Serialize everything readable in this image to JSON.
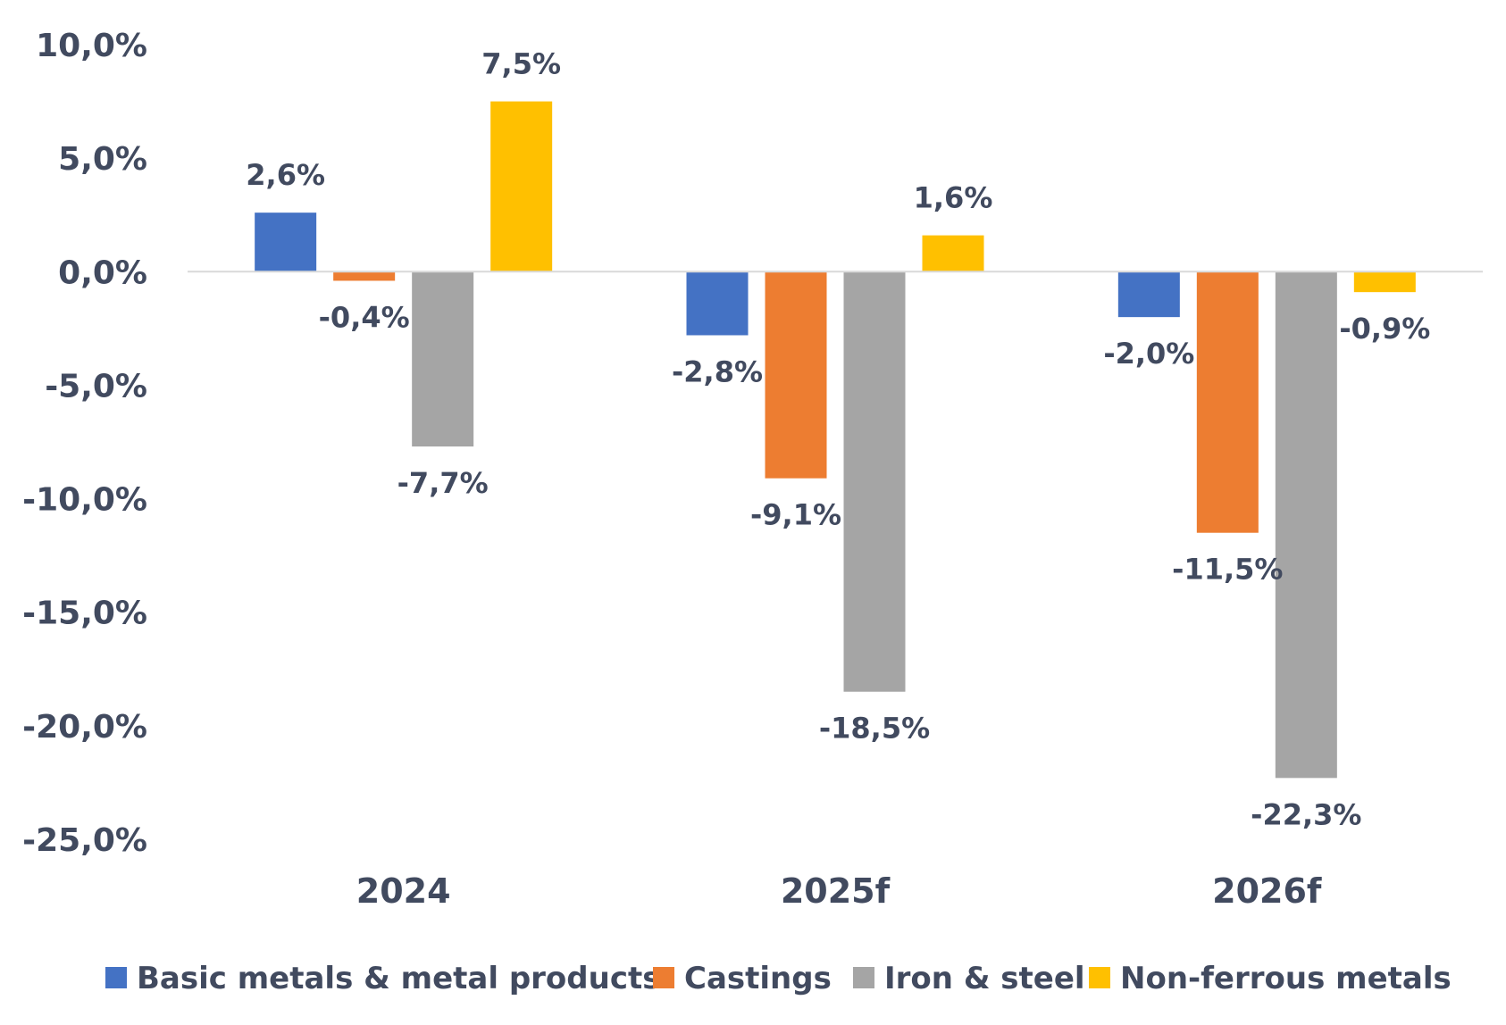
{
  "chart_data": {
    "type": "bar",
    "title": "",
    "xlabel": "",
    "ylabel": "",
    "categories": [
      "2024",
      "2025f",
      "2026f"
    ],
    "ylim": [
      -25,
      10
    ],
    "y_ticks": [
      10,
      5,
      0,
      -5,
      -10,
      -15,
      -20,
      -25
    ],
    "y_tick_labels": [
      "10,0%",
      "5,0%",
      "0,0%",
      "-5,0%",
      "-10,0%",
      "-15,0%",
      "-20,0%",
      "-25,0%"
    ],
    "grid": false,
    "legend_position": "bottom",
    "series": [
      {
        "name": "Basic metals & metal products",
        "color": "#4472c4",
        "values": [
          2.6,
          -2.8,
          -2.0
        ],
        "labels": [
          "2,6%",
          "-2,8%",
          "-2,0%"
        ]
      },
      {
        "name": "Castings",
        "color": "#ed7d31",
        "values": [
          -0.4,
          -9.1,
          -11.5
        ],
        "labels": [
          "-0,4%",
          "-9,1%",
          "-11,5%"
        ]
      },
      {
        "name": "Iron & steel",
        "color": "#a5a5a5",
        "values": [
          -7.7,
          -18.5,
          -22.3
        ],
        "labels": [
          "-7,7%",
          "-18,5%",
          "-22,3%"
        ]
      },
      {
        "name": "Non-ferrous metals",
        "color": "#ffc000",
        "values": [
          7.5,
          1.6,
          -0.9
        ],
        "labels": [
          "7,5%",
          "1,6%",
          "-0,9%"
        ]
      }
    ]
  }
}
